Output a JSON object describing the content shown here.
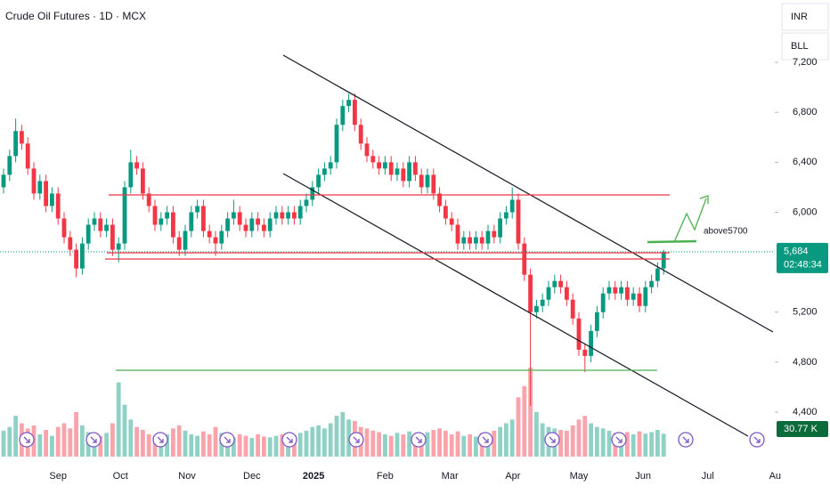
{
  "chart_data": {
    "type": "candlestick",
    "title": "Crude Oil Futures · 1D · MCX",
    "currency": "INR",
    "unit": "BLL",
    "annotation": "above5700",
    "last_label": "5,684",
    "countdown": "02:48:34",
    "volume_last_label": "30.77 K",
    "up_color": "#089981",
    "down_color": "#f23645",
    "ylim": [
      3923,
      7699
    ],
    "yticks": [
      {
        "value": 7200,
        "label": "7,200"
      },
      {
        "value": 6800,
        "label": "6,800"
      },
      {
        "value": 6400,
        "label": "6,400"
      },
      {
        "value": 6000,
        "label": "6,000"
      },
      {
        "value": 5200,
        "label": "5,200"
      },
      {
        "value": 4800,
        "label": "4,800"
      },
      {
        "value": 4400,
        "label": "4,400"
      }
    ],
    "xticks": [
      {
        "value": 9,
        "label": "Sep"
      },
      {
        "value": 19.3,
        "label": "Oct"
      },
      {
        "value": 30.3,
        "label": "Nov"
      },
      {
        "value": 41,
        "label": "Dec"
      },
      {
        "value": 51.2,
        "label": "2025"
      },
      {
        "value": 63,
        "label": "Feb"
      },
      {
        "value": 73.7,
        "label": "Mar"
      },
      {
        "value": 84.1,
        "label": "Apr"
      },
      {
        "value": 95,
        "label": "May"
      },
      {
        "value": 105.6,
        "label": "Jun"
      },
      {
        "value": 116.3,
        "label": "Jul"
      },
      {
        "value": 127.4,
        "label": "Au"
      }
    ],
    "ohlc": [
      [
        6200,
        6350,
        6150,
        6300
      ],
      [
        6300,
        6500,
        6250,
        6450
      ],
      [
        6450,
        6750,
        6400,
        6650
      ],
      [
        6650,
        6700,
        6500,
        6550
      ],
      [
        6550,
        6600,
        6300,
        6350
      ],
      [
        6350,
        6400,
        6100,
        6150
      ],
      [
        6150,
        6300,
        6100,
        6250
      ],
      [
        6250,
        6300,
        6000,
        6050
      ],
      [
        6050,
        6200,
        6000,
        6150
      ],
      [
        6150,
        6200,
        5900,
        5950
      ],
      [
        5950,
        6000,
        5750,
        5800
      ],
      [
        5800,
        5850,
        5650,
        5700
      ],
      [
        5700,
        5750,
        5480,
        5550
      ],
      [
        5550,
        5800,
        5500,
        5750
      ],
      [
        5750,
        5950,
        5700,
        5900
      ],
      [
        5900,
        6000,
        5850,
        5950
      ],
      [
        5950,
        6000,
        5800,
        5850
      ],
      [
        5850,
        5950,
        5800,
        5900
      ],
      [
        5900,
        5950,
        5650,
        5700
      ],
      [
        5700,
        5800,
        5600,
        5750
      ],
      [
        5750,
        6250,
        5700,
        6200
      ],
      [
        6200,
        6500,
        6150,
        6400
      ],
      [
        6400,
        6450,
        6300,
        6350
      ],
      [
        6350,
        6400,
        6100,
        6150
      ],
      [
        6150,
        6200,
        6000,
        6050
      ],
      [
        6050,
        6100,
        5850,
        5900
      ],
      [
        5900,
        6000,
        5850,
        5950
      ],
      [
        5950,
        6050,
        5900,
        6000
      ],
      [
        6000,
        6050,
        5750,
        5800
      ],
      [
        5800,
        5850,
        5650,
        5700
      ],
      [
        5700,
        5900,
        5650,
        5850
      ],
      [
        5850,
        6050,
        5800,
        6000
      ],
      [
        6000,
        6100,
        5950,
        6050
      ],
      [
        6050,
        6100,
        5800,
        5850
      ],
      [
        5850,
        5900,
        5750,
        5800
      ],
      [
        5800,
        5850,
        5650,
        5750
      ],
      [
        5750,
        5900,
        5700,
        5850
      ],
      [
        5850,
        6000,
        5800,
        5950
      ],
      [
        5950,
        6100,
        5900,
        6000
      ],
      [
        6000,
        6050,
        5850,
        5900
      ],
      [
        5900,
        5950,
        5800,
        5850
      ],
      [
        5850,
        6000,
        5800,
        5950
      ],
      [
        5950,
        6000,
        5850,
        5900
      ],
      [
        5900,
        5950,
        5800,
        5850
      ],
      [
        5850,
        6000,
        5800,
        5950
      ],
      [
        5950,
        6050,
        5900,
        6000
      ],
      [
        6000,
        6050,
        5900,
        5950
      ],
      [
        5950,
        6050,
        5900,
        6000
      ],
      [
        6000,
        6050,
        5900,
        5950
      ],
      [
        5950,
        6100,
        5900,
        6050
      ],
      [
        6050,
        6150,
        6000,
        6100
      ],
      [
        6100,
        6250,
        6050,
        6200
      ],
      [
        6200,
        6350,
        6150,
        6300
      ],
      [
        6300,
        6400,
        6250,
        6350
      ],
      [
        6350,
        6450,
        6300,
        6400
      ],
      [
        6400,
        6750,
        6350,
        6700
      ],
      [
        6700,
        6900,
        6650,
        6850
      ],
      [
        6850,
        6950,
        6800,
        6900
      ],
      [
        6900,
        6950,
        6650,
        6700
      ],
      [
        6700,
        6750,
        6500,
        6550
      ],
      [
        6550,
        6600,
        6400,
        6450
      ],
      [
        6450,
        6500,
        6350,
        6400
      ],
      [
        6400,
        6450,
        6300,
        6350
      ],
      [
        6350,
        6450,
        6300,
        6400
      ],
      [
        6400,
        6450,
        6250,
        6300
      ],
      [
        6300,
        6400,
        6250,
        6350
      ],
      [
        6350,
        6400,
        6200,
        6250
      ],
      [
        6250,
        6450,
        6200,
        6400
      ],
      [
        6400,
        6450,
        6250,
        6300
      ],
      [
        6300,
        6350,
        6150,
        6200
      ],
      [
        6200,
        6350,
        6150,
        6300
      ],
      [
        6300,
        6350,
        6100,
        6150
      ],
      [
        6150,
        6200,
        6000,
        6050
      ],
      [
        6050,
        6100,
        5900,
        5950
      ],
      [
        5950,
        6000,
        5850,
        5900
      ],
      [
        5900,
        5950,
        5700,
        5750
      ],
      [
        5750,
        5850,
        5700,
        5800
      ],
      [
        5800,
        5850,
        5700,
        5750
      ],
      [
        5750,
        5850,
        5700,
        5800
      ],
      [
        5800,
        5850,
        5700,
        5750
      ],
      [
        5750,
        5900,
        5700,
        5850
      ],
      [
        5850,
        5900,
        5750,
        5800
      ],
      [
        5800,
        6000,
        5750,
        5950
      ],
      [
        5950,
        6050,
        5900,
        6000
      ],
      [
        6000,
        6200,
        5950,
        6100
      ],
      [
        6100,
        6150,
        5700,
        5750
      ],
      [
        5750,
        5800,
        5450,
        5500
      ],
      [
        5500,
        5550,
        4450,
        5200
      ],
      [
        5200,
        5300,
        5150,
        5250
      ],
      [
        5250,
        5350,
        5200,
        5300
      ],
      [
        5300,
        5450,
        5250,
        5400
      ],
      [
        5400,
        5500,
        5350,
        5450
      ],
      [
        5450,
        5500,
        5350,
        5400
      ],
      [
        5400,
        5450,
        5250,
        5300
      ],
      [
        5300,
        5350,
        5100,
        5150
      ],
      [
        5150,
        5200,
        4850,
        4900
      ],
      [
        4900,
        4950,
        4720,
        4850
      ],
      [
        4850,
        5100,
        4800,
        5050
      ],
      [
        5050,
        5250,
        5000,
        5200
      ],
      [
        5200,
        5400,
        5150,
        5350
      ],
      [
        5350,
        5450,
        5300,
        5400
      ],
      [
        5400,
        5450,
        5300,
        5350
      ],
      [
        5350,
        5450,
        5300,
        5400
      ],
      [
        5400,
        5450,
        5250,
        5300
      ],
      [
        5300,
        5400,
        5250,
        5350
      ],
      [
        5350,
        5400,
        5200,
        5250
      ],
      [
        5250,
        5450,
        5200,
        5400
      ],
      [
        5400,
        5500,
        5350,
        5450
      ],
      [
        5450,
        5600,
        5400,
        5550
      ],
      [
        5550,
        5700,
        5500,
        5684
      ]
    ],
    "volume": [
      35,
      40,
      55,
      45,
      38,
      42,
      30,
      36,
      28,
      40,
      45,
      38,
      60,
      42,
      33,
      30,
      28,
      32,
      45,
      100,
      70,
      50,
      40,
      36,
      30,
      28,
      26,
      30,
      38,
      42,
      35,
      30,
      28,
      34,
      30,
      40,
      32,
      28,
      26,
      30,
      28,
      25,
      30,
      27,
      26,
      28,
      30,
      27,
      29,
      32,
      35,
      40,
      42,
      38,
      45,
      55,
      60,
      50,
      48,
      40,
      38,
      35,
      33,
      30,
      28,
      32,
      30,
      34,
      28,
      30,
      33,
      36,
      38,
      35,
      30,
      34,
      28,
      30,
      27,
      32,
      30,
      35,
      40,
      45,
      50,
      80,
      95,
      120,
      60,
      45,
      40,
      38,
      36,
      35,
      42,
      50,
      55,
      45,
      40,
      38,
      35,
      32,
      30,
      33,
      30,
      34,
      31,
      33,
      36,
      30.77
    ]
  }
}
